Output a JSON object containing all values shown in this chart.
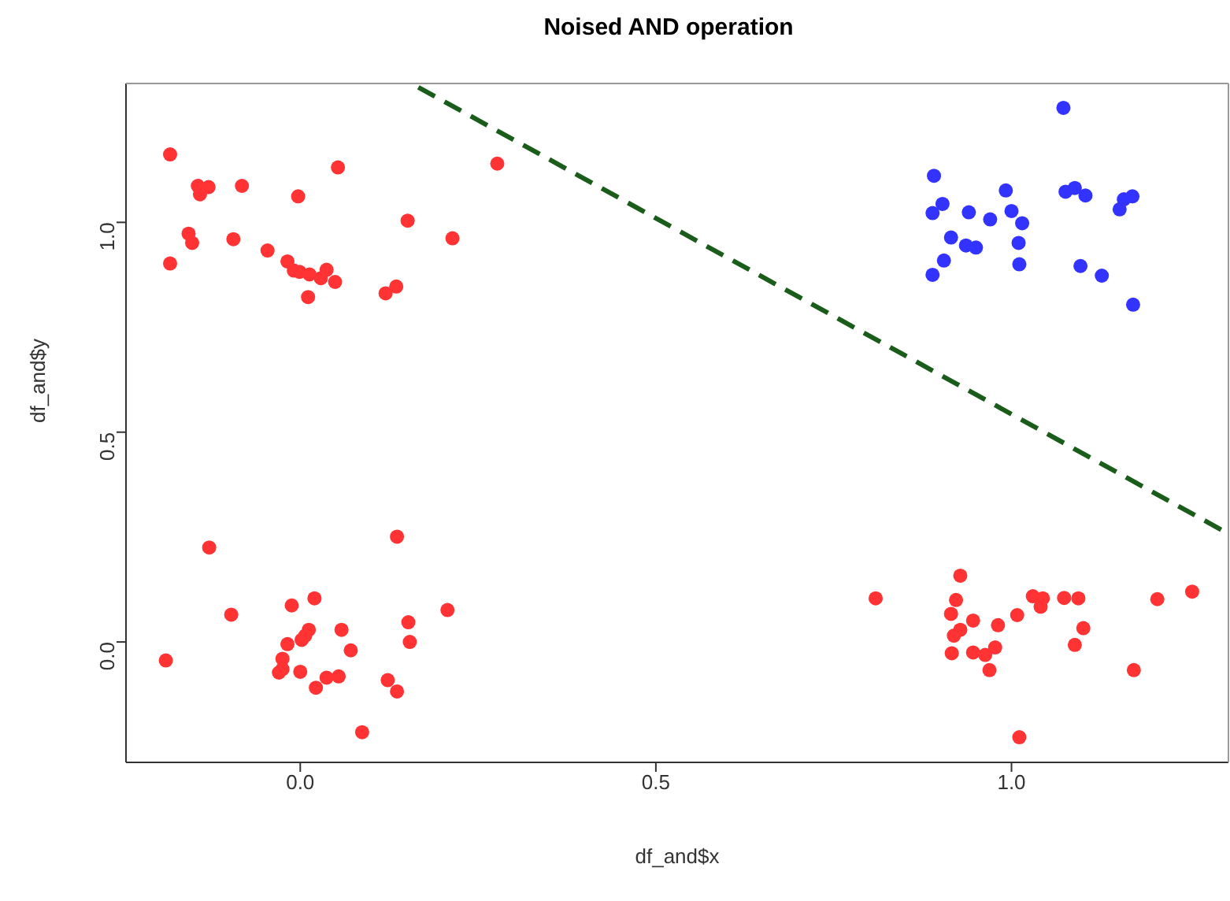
{
  "chart_data": {
    "type": "scatter",
    "title": "Noised AND operation",
    "xlabel": "df_and$x",
    "ylabel": "df_and$y",
    "xlim": [
      -0.245,
      1.305
    ],
    "ylim": [
      -0.287,
      1.331
    ],
    "xticks": [
      {
        "value": 0,
        "label": "0.0"
      },
      0.5,
      {
        "value": 1,
        "label": "1.0"
      }
    ],
    "yticks": [
      {
        "value": 0,
        "label": "0.0"
      },
      0.5,
      {
        "value": 1,
        "label": "1.0"
      }
    ],
    "grid": false,
    "marker": "circle",
    "series": [
      {
        "type": "scatter",
        "color": "#3333ff",
        "x": [
          1.073,
          0.891,
          0.992,
          1.076,
          1.089,
          1.104,
          1.158,
          1.17,
          1.152,
          0.903,
          0.889,
          0.94,
          0.97,
          1.0,
          1.015,
          0.915,
          0.936,
          0.95,
          1.01,
          0.905,
          0.889,
          1.011,
          1.097,
          1.127,
          1.171
        ],
        "values": [
          1.273,
          1.111,
          1.076,
          1.073,
          1.082,
          1.064,
          1.055,
          1.062,
          1.031,
          1.044,
          1.022,
          1.024,
          1.007,
          1.027,
          0.998,
          0.964,
          0.945,
          0.94,
          0.951,
          0.909,
          0.875,
          0.9,
          0.896,
          0.873,
          0.804
        ]
      },
      {
        "type": "scatter",
        "color": "#ff3333",
        "x": [
          -0.183,
          0.053,
          0.277,
          -0.144,
          -0.129,
          -0.141,
          -0.082,
          -0.003,
          0.151,
          -0.157,
          -0.152,
          -0.094,
          0.214,
          -0.183,
          -0.046,
          -0.018,
          -0.009,
          -0.001,
          0.013,
          0.029,
          0.037,
          0.049,
          0.011,
          0.12,
          0.135,
          -0.128,
          0.136,
          -0.097,
          -0.012,
          0.02,
          0.207,
          0.152,
          0.058,
          0.012,
          0.007,
          0.002,
          -0.018,
          0.154,
          0.071,
          -0.189,
          -0.025,
          -0.025,
          -0.03,
          0.0,
          0.037,
          0.054,
          0.123,
          0.136,
          0.022,
          0.087,
          0.809,
          0.928,
          0.922,
          0.915,
          0.946,
          0.928,
          0.919,
          0.981,
          1.008,
          1.03,
          1.044,
          1.041,
          1.074,
          1.094,
          1.101,
          1.089,
          1.205,
          1.254,
          0.916,
          0.946,
          0.963,
          0.977,
          0.969,
          1.172,
          1.011
        ],
        "values": [
          1.162,
          1.131,
          1.14,
          1.087,
          1.084,
          1.067,
          1.087,
          1.062,
          1.004,
          0.973,
          0.951,
          0.96,
          0.962,
          0.902,
          0.933,
          0.907,
          0.885,
          0.882,
          0.876,
          0.867,
          0.887,
          0.858,
          0.822,
          0.831,
          0.847,
          0.225,
          0.251,
          0.065,
          0.087,
          0.104,
          0.076,
          0.047,
          0.029,
          0.029,
          0.015,
          0.005,
          -0.005,
          0.0,
          -0.02,
          -0.044,
          -0.04,
          -0.065,
          -0.073,
          -0.071,
          -0.085,
          -0.082,
          -0.091,
          -0.118,
          -0.109,
          -0.215,
          0.104,
          0.158,
          0.1,
          0.067,
          0.051,
          0.029,
          0.015,
          0.04,
          0.064,
          0.109,
          0.104,
          0.084,
          0.105,
          0.104,
          0.033,
          -0.007,
          0.102,
          0.12,
          -0.027,
          -0.025,
          -0.031,
          -0.013,
          -0.067,
          -0.067,
          -0.227
        ]
      },
      {
        "type": "line",
        "color": "#1a5c1a",
        "line_style": "dashed",
        "marker": "none",
        "x": [
          0.166,
          1.305
        ],
        "values": [
          1.322,
          0.258
        ]
      }
    ]
  }
}
